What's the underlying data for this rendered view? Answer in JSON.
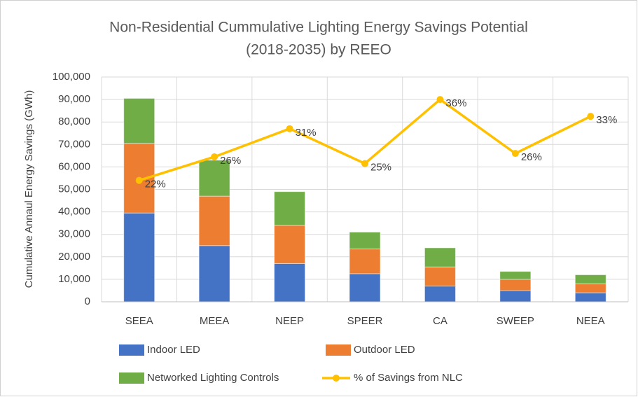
{
  "chart_data": {
    "type": "bar",
    "stacked": true,
    "title": [
      "Non-Residential Cummulative Lighting Energy Savings Potential",
      "(2018-2035) by REEO"
    ],
    "y_label": "Cumulative Annaul Energy Savings (GWh)",
    "categories": [
      "SEEA",
      "MEEA",
      "NEEP",
      "SPEER",
      "CA",
      "SWEEP",
      "NEEA"
    ],
    "series": [
      {
        "name": "Indoor LED",
        "type": "bar",
        "color": "#4472c4",
        "values": [
          39500,
          25000,
          17000,
          12500,
          7000,
          5000,
          4000
        ]
      },
      {
        "name": "Outdoor LED",
        "type": "bar",
        "color": "#ed7d31",
        "values": [
          31000,
          22000,
          17000,
          11000,
          8500,
          5000,
          4000
        ]
      },
      {
        "name": "Networked Lighting Controls",
        "type": "bar",
        "color": "#70ad47",
        "values": [
          20000,
          16000,
          15000,
          7500,
          8500,
          3500,
          4000
        ]
      },
      {
        "name": "% of Savings from NLC",
        "type": "line",
        "axis": "y2",
        "color": "#ffc000",
        "values": [
          21.6,
          25.8,
          30.8,
          24.6,
          36,
          26.4,
          33
        ],
        "value_labels": [
          "22%",
          "26%",
          "31%",
          "25%",
          "36%",
          "26%",
          "33%"
        ]
      }
    ],
    "ylim": [
      0,
      100000
    ],
    "yticks": [
      0,
      {
        "value": 10000,
        "label": "10,000"
      },
      {
        "value": 20000,
        "label": "20,000"
      },
      {
        "value": 30000,
        "label": "30,000"
      },
      {
        "value": 40000,
        "label": "40,000"
      },
      {
        "value": 50000,
        "label": "50,000"
      },
      {
        "value": 60000,
        "label": "60,000"
      },
      {
        "value": 70000,
        "label": "70,000"
      },
      {
        "value": 80000,
        "label": "80,000"
      },
      {
        "value": 90000,
        "label": "90,000"
      },
      {
        "value": 100000,
        "label": "100,000"
      }
    ],
    "y2lim": [
      0,
      40
    ],
    "grid": true,
    "legend": "bottom"
  }
}
